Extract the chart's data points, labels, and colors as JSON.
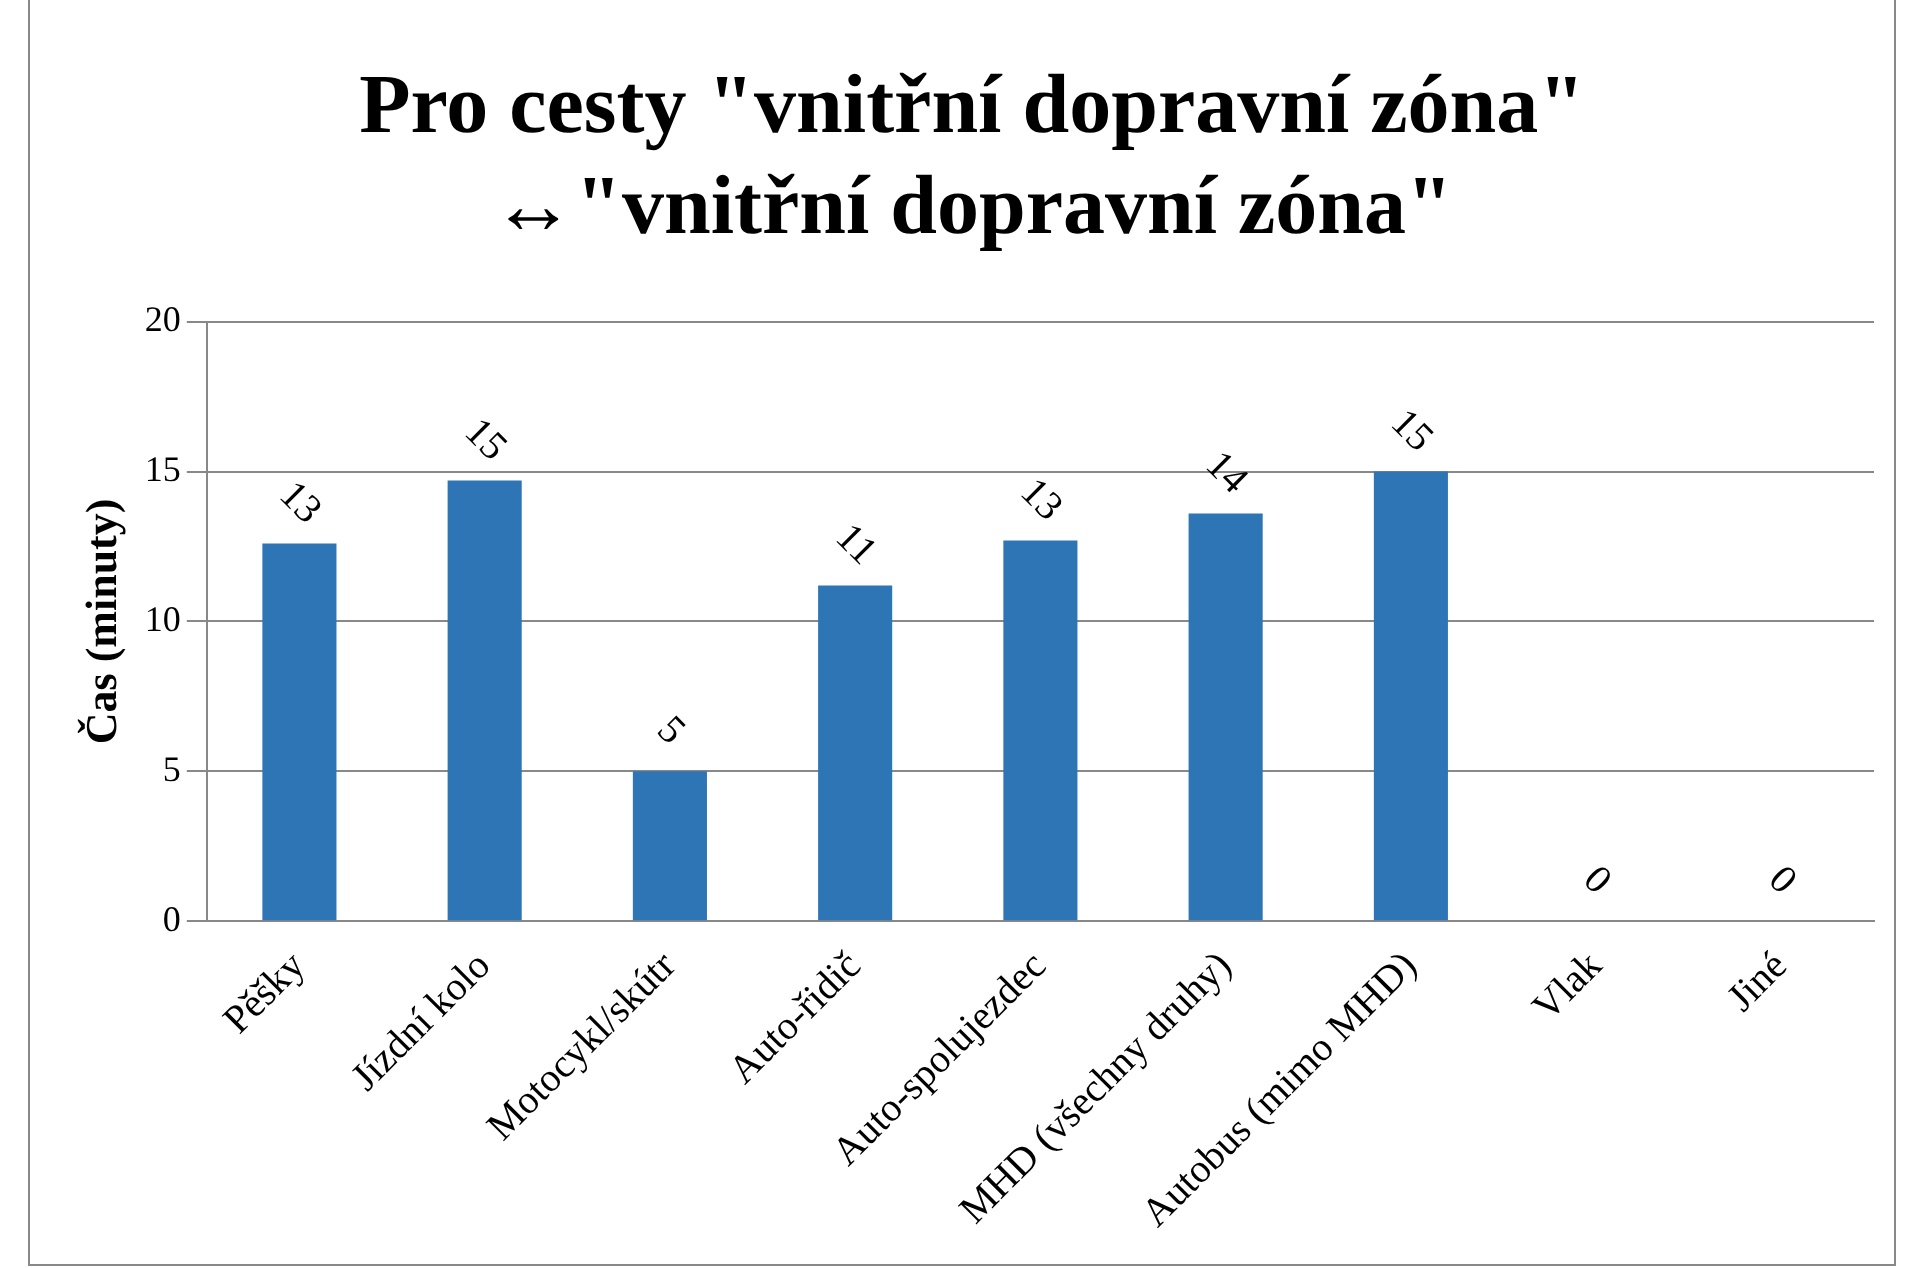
{
  "chart_data": {
    "type": "bar",
    "title": [
      "Pro cesty \"vnitřní dopravní zóna\"",
      "↔\"vnitřní dopravní zóna\""
    ],
    "ylabel": "Čas (minuty)",
    "categories": [
      "Pěšky",
      "Jízdní kolo",
      "Motocykl/skútr",
      "Auto-řidič",
      "Auto-spolujezdec",
      "MHD (všechny druhy)",
      "Autobus (mimo MHD)",
      "Vlak",
      "Jiné"
    ],
    "values": [
      12.6,
      14.7,
      5,
      11.2,
      12.7,
      13.6,
      15,
      0,
      0
    ],
    "value_labels": [
      "13",
      "15",
      "5",
      "11",
      "13",
      "14",
      "15",
      "0",
      "0"
    ],
    "color": "#2e75b6",
    "ylim": [
      0,
      20
    ],
    "yticks": [
      0,
      5,
      10,
      15,
      20
    ],
    "grid": "y",
    "legend": false
  }
}
